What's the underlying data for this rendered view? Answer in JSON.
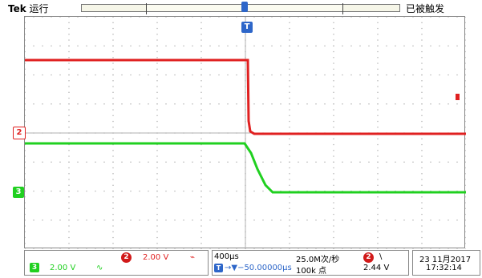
{
  "header": {
    "brand": "Tek",
    "run_state": "运行",
    "trigger_status": "已被触发"
  },
  "channels": [
    {
      "id": "2",
      "scale": "2.00 V",
      "coupling_symbol": "⌁",
      "color": "#e02020"
    },
    {
      "id": "3",
      "scale": "2.00 V",
      "coupling_symbol": "∿",
      "color": "#20d020"
    }
  ],
  "timebase": {
    "horizontal_scale": "400µs",
    "trigger_position_label": "T",
    "position_readout": "→▼−50.00000µs",
    "sample_rate": "25.0M次/秒",
    "record_length": "100k 点"
  },
  "trigger": {
    "source": "2",
    "slope": "\\",
    "level": "2.44 V"
  },
  "datetime": {
    "date": "23 11月2017",
    "time": "17:32:14"
  },
  "colors": {
    "ch2": "#e02020",
    "ch3": "#20d020",
    "trigger": "#2d66c9"
  }
}
